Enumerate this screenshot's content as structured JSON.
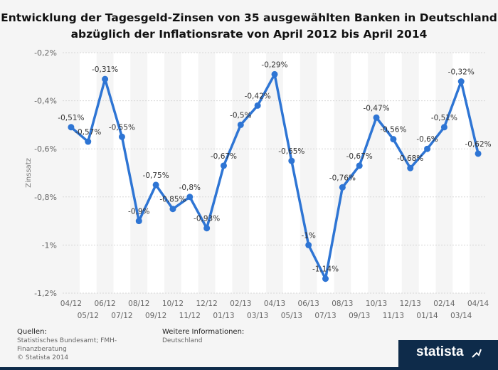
{
  "title_lines": [
    "Entwicklung der Tagesgeld-Zinsen von 35 ausgewählten Banken in Deutschland",
    "abzüglich der Inflationsrate von April 2012 bis April 2014"
  ],
  "footer": {
    "sources_heading": "Quellen:",
    "sources_text": "Statistisches Bundesamt; FMH-Finanzberatung",
    "copyright": "© Statista 2014",
    "info_heading": "Weitere Informationen:",
    "info_text": "Deutschland"
  },
  "brand": "statista",
  "colors": {
    "line": "#2e75d4",
    "brand_bg": "#0e2b4a",
    "band": "#ffffff"
  },
  "chart_data": {
    "type": "line",
    "title": "Entwicklung der Tagesgeld-Zinsen von 35 ausgewählten Banken in Deutschland abzüglich der Inflationsrate von April 2012 bis April 2014",
    "ylabel": "Zinssatz",
    "xlabel": "",
    "ylim": [
      -1.2,
      -0.2
    ],
    "yticks": [
      -0.2,
      -0.4,
      -0.6,
      -0.8,
      -1.0,
      -1.2
    ],
    "ytick_labels": [
      "-0,2%",
      "-0,4%",
      "-0,6%",
      "-0,8%",
      "-1%",
      "-1,2%"
    ],
    "categories": [
      "04/12",
      "05/12",
      "06/12",
      "07/12",
      "08/12",
      "09/12",
      "10/12",
      "11/12",
      "12/12",
      "01/13",
      "02/13",
      "03/13",
      "04/13",
      "05/13",
      "06/13",
      "07/13",
      "08/13",
      "09/13",
      "10/13",
      "11/13",
      "12/13",
      "01/14",
      "02/14",
      "03/14",
      "04/14"
    ],
    "values": [
      -0.51,
      -0.57,
      -0.31,
      -0.55,
      -0.9,
      -0.75,
      -0.85,
      -0.8,
      -0.93,
      -0.67,
      -0.5,
      -0.42,
      -0.29,
      -0.65,
      -1.0,
      -1.14,
      -0.76,
      -0.67,
      -0.47,
      -0.56,
      -0.68,
      -0.6,
      -0.51,
      -0.32,
      -0.62
    ],
    "data_labels": [
      "-0,51%",
      "-0,57%",
      "-0,31%",
      "-0,55%",
      "-0,9%",
      "-0,75%",
      "-0,85%",
      "-0,8%",
      "-0,93%",
      "-0,67%",
      "-0,5%",
      "-0,42%",
      "-0,29%",
      "-0,65%",
      "-1%",
      "-1,14%",
      "-0,76%",
      "-0,67%",
      "-0,47%",
      "-0,56%",
      "-0,68%",
      "-0,6%",
      "-0,51%",
      "-0,32%",
      "-0,62%"
    ],
    "grid": true,
    "legend": "none"
  }
}
